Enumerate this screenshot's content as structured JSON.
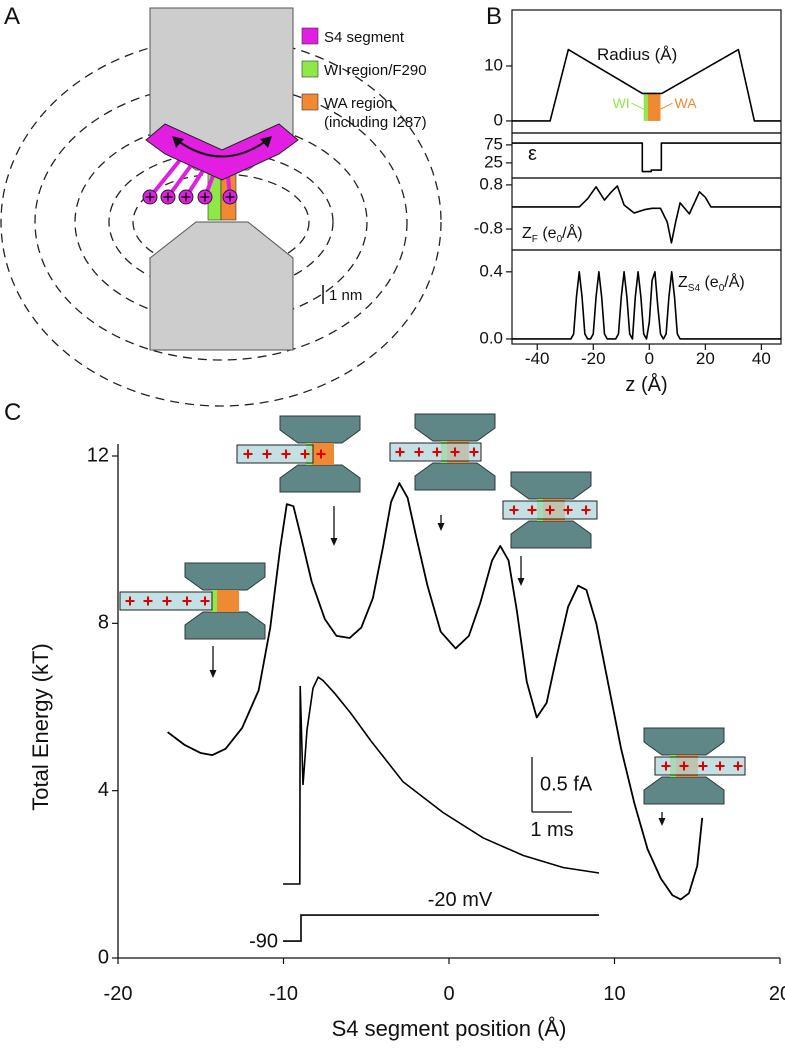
{
  "panel_labels": [
    "A",
    "B",
    "C"
  ],
  "schematic": {
    "legend": [
      {
        "label": [
          "S4 segment"
        ],
        "color": "#e21ee2"
      },
      {
        "label": [
          "WI region/F290"
        ],
        "color": "#8ee84a"
      },
      {
        "label": [
          "WA region",
          "(including I287)"
        ],
        "color": "#f08a32"
      }
    ],
    "scale_bar": "1 nm"
  },
  "chart_data": [
    {
      "type": "line",
      "frame": true,
      "color": "#000000",
      "x": [
        -49,
        -35.4,
        -28.9,
        -2.5,
        4.5,
        31.8,
        37.5,
        47
      ],
      "values": [
        0,
        0,
        13,
        5,
        5,
        13,
        0,
        0
      ],
      "xlim": [
        -49,
        47
      ],
      "ylim": [
        -2.2,
        20.2
      ],
      "yticks": [
        0,
        10
      ],
      "annotation": "Radius (Å)",
      "regions": [
        {
          "label": "WI",
          "color": "#8ee84a",
          "x": [
            -2,
            -0.5
          ],
          "y": [
            0,
            5
          ]
        },
        {
          "label": "WA",
          "color": "#f08a32",
          "x": [
            -0.5,
            4
          ],
          "y": [
            0,
            5
          ]
        }
      ]
    },
    {
      "type": "line",
      "frame": true,
      "color": "#000000",
      "x": [
        -49,
        -2.5,
        -2.5,
        0.7,
        0.7,
        4.3,
        4.3,
        47
      ],
      "values": [
        80,
        80,
        1,
        1,
        5,
        5,
        80,
        80
      ],
      "xlim": [
        -49,
        47
      ],
      "ylim": [
        -17,
        108
      ],
      "yticks": [
        25,
        75
      ],
      "annotation": "ε"
    },
    {
      "type": "line",
      "frame": true,
      "color": "#000000",
      "x": [
        -49,
        -25,
        -22,
        -19,
        -16,
        -13.5,
        -11.4,
        -9,
        -5.4,
        -1.8,
        1,
        4,
        6.4,
        7.9,
        9.5,
        11,
        14.3,
        17.9,
        20,
        22,
        47
      ],
      "values": [
        0,
        0,
        0.3,
        0.73,
        0.25,
        0.55,
        0.76,
        0.07,
        -0.22,
        -0.1,
        -0.05,
        -0.05,
        -0.55,
        -1.3,
        -0.5,
        0.15,
        -0.25,
        0.55,
        0.35,
        0,
        0
      ],
      "xlim": [
        -49,
        47
      ],
      "ylim": [
        -1.56,
        1.05
      ],
      "yticks": [
        0.8,
        -0.8
      ],
      "annotation": [
        {
          "text": "Z"
        },
        {
          "text": "F",
          "sub": true
        },
        {
          "text": " (e"
        },
        {
          "text": "0",
          "sub": true
        },
        {
          "text": "/Å)"
        }
      ]
    },
    {
      "type": "line",
      "frame": true,
      "color": "#000000",
      "x": [
        -49,
        -28,
        -27,
        -26,
        -25,
        -24,
        -23,
        -22,
        -21,
        -20,
        -19,
        -18,
        -17,
        -16,
        -15,
        -12,
        -11,
        -10,
        -9,
        -8,
        -7,
        -6,
        -5,
        -4,
        -3,
        -2,
        -1,
        0,
        1,
        2,
        3,
        4,
        5,
        6,
        7,
        8,
        9,
        10,
        11,
        47
      ],
      "values": [
        0,
        0,
        0.03,
        0.25,
        0.4,
        0.25,
        0.03,
        0,
        0,
        0.03,
        0.25,
        0.4,
        0.25,
        0.03,
        0,
        0,
        0.03,
        0.25,
        0.4,
        0.25,
        0.03,
        0,
        0.25,
        0.4,
        0.25,
        0.03,
        0,
        0.1,
        0.35,
        0.4,
        0.2,
        0.03,
        0,
        0.03,
        0.25,
        0.4,
        0.25,
        0.03,
        0,
        0
      ],
      "xlim": [
        -49,
        47
      ],
      "ylim": [
        -0.03,
        0.53
      ],
      "yticks": [
        {
          "value": 0,
          "label": "0.0"
        },
        0.4
      ],
      "xticks": [
        -40,
        -20,
        0,
        20,
        40
      ],
      "xlabel": "z (Å)",
      "annotation": [
        {
          "text": "Z"
        },
        {
          "text": "S4",
          "sub": true
        },
        {
          "text": " (e"
        },
        {
          "text": "0",
          "sub": true
        },
        {
          "text": "/Å)"
        }
      ]
    },
    {
      "type": "line",
      "color": "#000000",
      "x": [
        -17,
        -16,
        -15,
        -14.3,
        -13.5,
        -12.5,
        -11.5,
        -10.8,
        -10.2,
        -9.8,
        -9.4,
        -8.9,
        -8.3,
        -7.5,
        -6.8,
        -6.0,
        -5.3,
        -4.6,
        -4.0,
        -3.5,
        -3.0,
        -2.5,
        -2.0,
        -1.3,
        -0.5,
        0.4,
        1.2,
        1.9,
        2.6,
        3.1,
        3.6,
        4.1,
        4.7,
        5.3,
        5.9,
        6.5,
        7.2,
        7.8,
        8.3,
        8.9,
        9.6,
        10.4,
        11.2,
        12.0,
        12.8,
        13.5,
        14.0,
        14.5,
        15.0,
        15.3
      ],
      "values": [
        5.4,
        5.1,
        4.9,
        4.85,
        5.0,
        5.5,
        6.4,
        7.9,
        9.8,
        10.85,
        10.8,
        10.0,
        9.0,
        8.1,
        7.7,
        7.65,
        7.9,
        8.6,
        9.8,
        10.9,
        11.35,
        11.0,
        10.1,
        8.9,
        7.8,
        7.4,
        7.7,
        8.5,
        9.5,
        9.85,
        9.5,
        8.3,
        6.6,
        5.75,
        6.1,
        7.2,
        8.4,
        8.9,
        8.8,
        8.0,
        6.6,
        5.0,
        3.7,
        2.6,
        1.9,
        1.5,
        1.4,
        1.55,
        2.2,
        3.35
      ],
      "xlim": [
        -20,
        20
      ],
      "ylim": [
        0,
        12
      ],
      "xticks": [
        -20,
        -10,
        0,
        10,
        20
      ],
      "yticks": [
        0,
        4,
        8,
        12
      ],
      "xlabel": "S4 segment position (Å)",
      "ylabel": "Total Energy (kT)"
    },
    {
      "type": "trace",
      "color": "#000000",
      "x": [
        0,
        0.42,
        0.43,
        0.5,
        0.6,
        0.75,
        0.88,
        1.0,
        1.3,
        1.7,
        2.2,
        3.0,
        4.0,
        5.0,
        6.0,
        7.0,
        7.9
      ],
      "values": [
        0,
        0,
        1.8,
        0.9,
        1.4,
        1.78,
        1.88,
        1.85,
        1.73,
        1.55,
        1.3,
        0.93,
        0.65,
        0.42,
        0.26,
        0.15,
        0.1
      ],
      "voltage": {
        "x": [
          0,
          0.45,
          0.45,
          7.9
        ],
        "values": [
          -90,
          -90,
          -20,
          -20
        ]
      },
      "voltage_labels": [
        {
          "value": -90,
          "label": "-90"
        },
        {
          "value": -20,
          "label": "-20 mV"
        }
      ],
      "scale_bars": [
        {
          "value": 0.5,
          "label": "0.5 fA"
        },
        {
          "value": 1,
          "label": "1 ms"
        }
      ]
    }
  ]
}
